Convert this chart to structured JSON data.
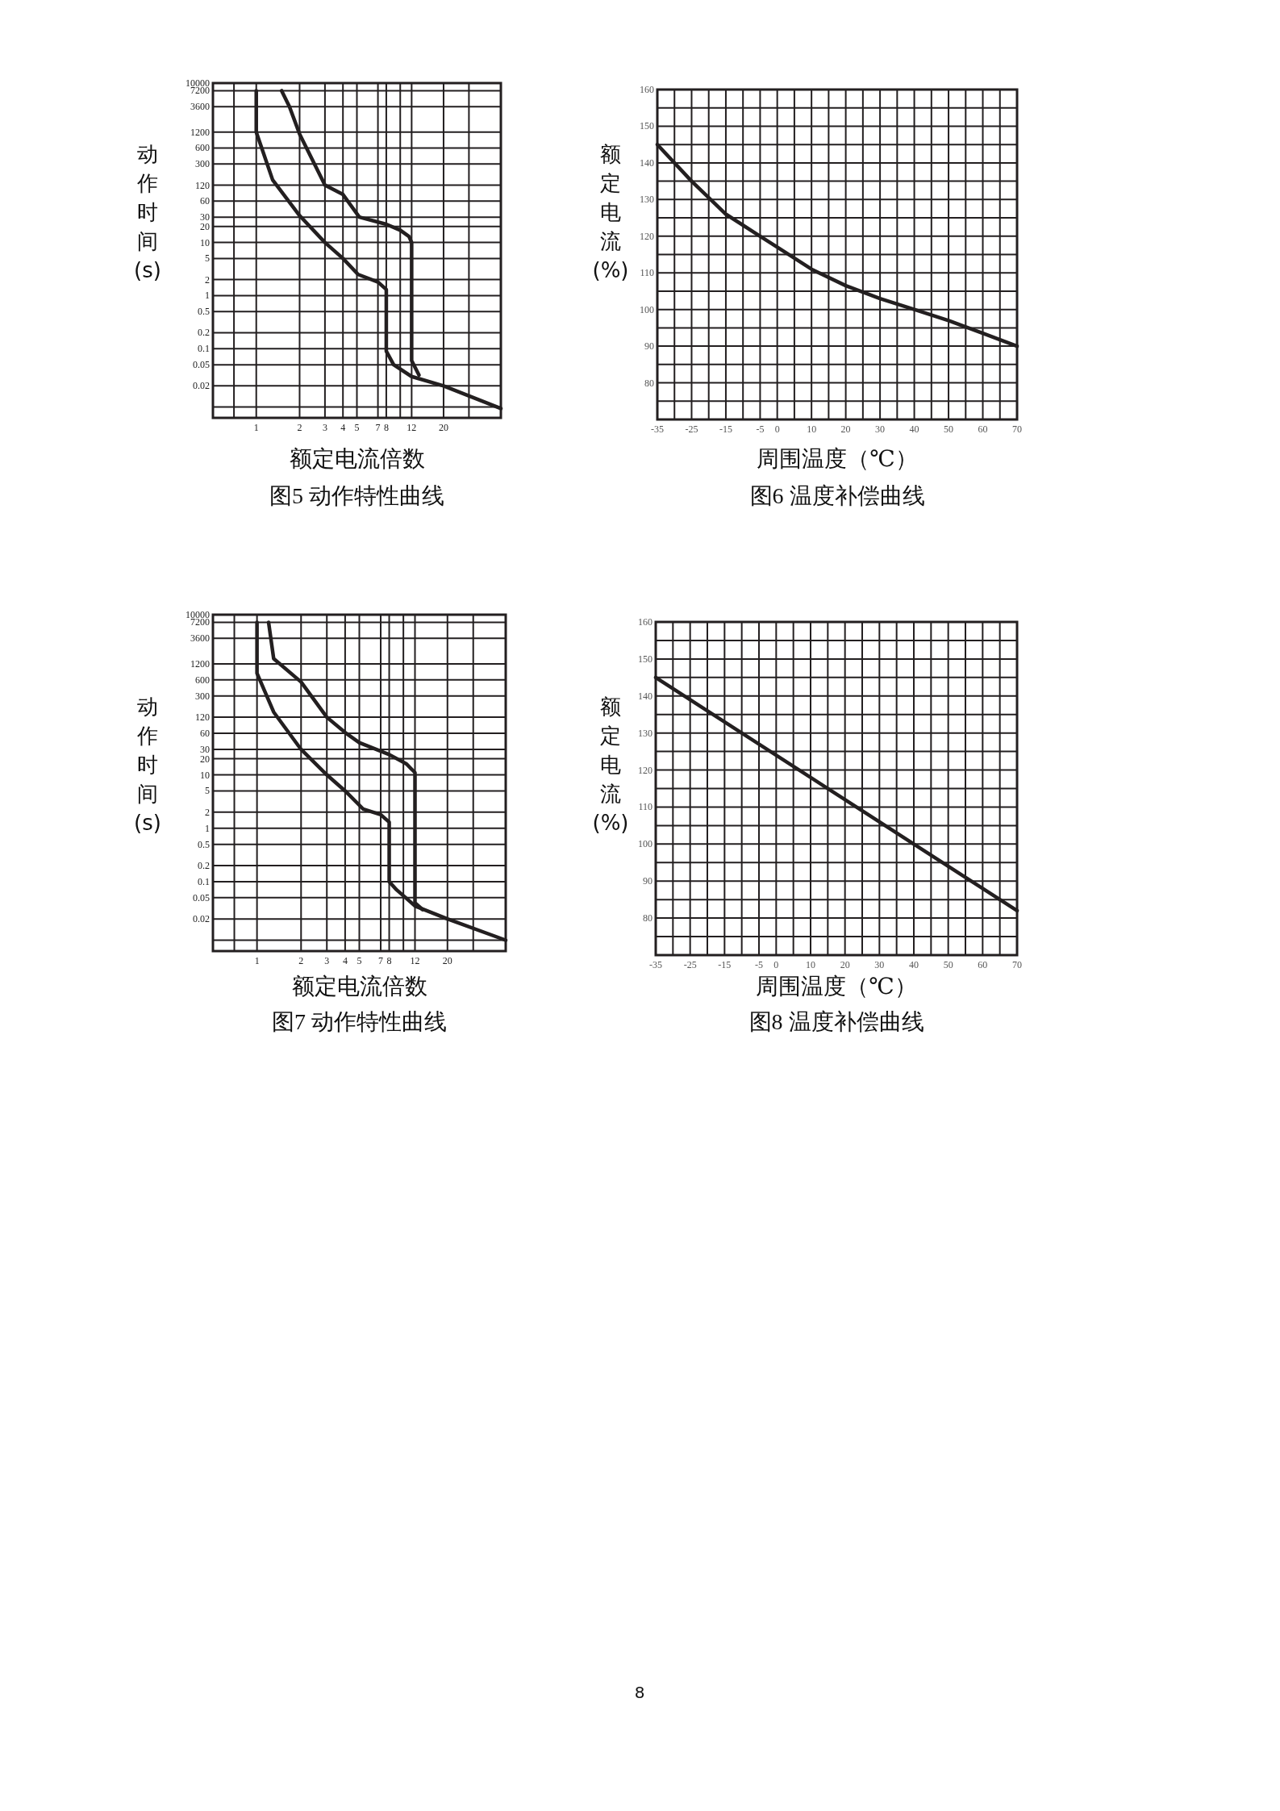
{
  "chart_data": [
    {
      "type": "line",
      "title": "图5 动作特性曲线",
      "xlabel": "额定电流倍数",
      "ylabel": "动作时间(s)",
      "log": "xy",
      "grid": true,
      "xlim": [
        0.5,
        50
      ],
      "ylim": [
        0.005,
        10000
      ],
      "xticks": [
        {
          "value": 0.7,
          "label": null
        },
        1,
        2,
        3,
        4,
        5,
        7,
        8,
        {
          "value": 10,
          "label": null
        },
        12,
        20,
        {
          "value": 30,
          "label": null
        }
      ],
      "yticks": [
        {
          "value": 0.008,
          "label": null
        },
        0.02,
        0.05,
        0.1,
        0.2,
        0.5,
        1,
        2,
        5,
        10,
        20,
        30,
        60,
        120,
        300,
        600,
        1200,
        3600,
        7200,
        10000
      ],
      "series": [
        {
          "color": "#231f20",
          "x": [
            1,
            1,
            1.3,
            2,
            3,
            4,
            5.1,
            7,
            8,
            8,
            9,
            12,
            20,
            50
          ],
          "values": [
            7200,
            1200,
            150,
            32,
            10,
            5,
            2.5,
            1.8,
            1.3,
            0.09,
            0.05,
            0.03,
            0.02,
            0.0075
          ]
        },
        {
          "color": "#231f20",
          "x": [
            1.5,
            1.7,
            2,
            3,
            4,
            5.2,
            8,
            10,
            11.5,
            12,
            12,
            13.5
          ],
          "values": [
            7200,
            3600,
            1100,
            120,
            80,
            30,
            22,
            17,
            13,
            10,
            0.06,
            0.032
          ]
        }
      ]
    },
    {
      "type": "line",
      "title": "图6 温度补偿曲线",
      "xlabel": "周围温度（℃）",
      "ylabel": "额定电流(%)",
      "grid": true,
      "xlim": [
        -35,
        70
      ],
      "ylim": [
        70,
        160
      ],
      "xticks": [
        -35,
        {
          "value": -30,
          "label": null
        },
        -25,
        {
          "value": -20,
          "label": null
        },
        -15,
        {
          "value": -10,
          "label": null
        },
        -5,
        0,
        {
          "value": 5,
          "label": null
        },
        10,
        {
          "value": 15,
          "label": null
        },
        20,
        {
          "value": 25,
          "label": null
        },
        30,
        {
          "value": 35,
          "label": null
        },
        40,
        {
          "value": 45,
          "label": null
        },
        50,
        {
          "value": 55,
          "label": null
        },
        60,
        {
          "value": 65,
          "label": null
        },
        70
      ],
      "yticks": [
        {
          "value": 75,
          "label": null
        },
        80,
        {
          "value": 85,
          "label": null
        },
        90,
        {
          "value": 95,
          "label": null
        },
        100,
        {
          "value": 105,
          "label": null
        },
        110,
        {
          "value": 115,
          "label": null
        },
        120,
        {
          "value": 125,
          "label": null
        },
        130,
        {
          "value": 135,
          "label": null
        },
        140,
        {
          "value": 145,
          "label": null
        },
        150,
        {
          "value": 155,
          "label": null
        },
        160
      ],
      "series": [
        {
          "color": "#231f20",
          "x": [
            -35,
            -25,
            -15,
            -5,
            0,
            10,
            20,
            30,
            40,
            50,
            60,
            70
          ],
          "values": [
            145,
            135,
            126,
            120,
            117,
            111,
            106.5,
            103,
            100,
            97,
            93.5,
            90
          ]
        }
      ]
    },
    {
      "type": "line",
      "title": "图7 动作特性曲线",
      "xlabel": "额定电流倍数",
      "ylabel": "动作时间(s)",
      "log": "xy",
      "grid": true,
      "xlim": [
        0.5,
        50
      ],
      "ylim": [
        0.005,
        10000
      ],
      "xticks": [
        {
          "value": 0.7,
          "label": null
        },
        1,
        2,
        3,
        4,
        5,
        7,
        8,
        {
          "value": 10,
          "label": null
        },
        12,
        20,
        {
          "value": 30,
          "label": null
        }
      ],
      "yticks": [
        {
          "value": 0.008,
          "label": null
        },
        0.02,
        0.05,
        0.1,
        0.2,
        0.5,
        1,
        2,
        5,
        10,
        20,
        30,
        60,
        120,
        300,
        600,
        1200,
        3600,
        7200,
        10000
      ],
      "series": [
        {
          "color": "#231f20",
          "x": [
            1,
            1,
            1.3,
            2,
            3,
            4,
            5.3,
            7,
            8,
            8,
            9,
            12,
            20,
            50
          ],
          "values": [
            7200,
            800,
            150,
            30,
            10,
            5,
            2.3,
            1.8,
            1.3,
            0.1,
            0.07,
            0.035,
            0.02,
            0.008
          ]
        },
        {
          "color": "#231f20",
          "x": [
            1.2,
            1.3,
            2,
            3,
            4,
            5,
            8,
            10.5,
            12,
            12,
            13.5
          ],
          "values": [
            7200,
            1500,
            550,
            120,
            62,
            40,
            24,
            16,
            11,
            0.04,
            0.03
          ]
        }
      ]
    },
    {
      "type": "line",
      "title": "图8 温度补偿曲线",
      "xlabel": "周围温度（℃）",
      "ylabel": "额定电流(%)",
      "grid": true,
      "xlim": [
        -35,
        70
      ],
      "ylim": [
        70,
        160
      ],
      "xticks": [
        -35,
        {
          "value": -30,
          "label": null
        },
        -25,
        {
          "value": -20,
          "label": null
        },
        -15,
        {
          "value": -10,
          "label": null
        },
        -5,
        0,
        {
          "value": 5,
          "label": null
        },
        10,
        {
          "value": 15,
          "label": null
        },
        20,
        {
          "value": 25,
          "label": null
        },
        30,
        {
          "value": 35,
          "label": null
        },
        40,
        {
          "value": 45,
          "label": null
        },
        50,
        {
          "value": 55,
          "label": null
        },
        60,
        {
          "value": 65,
          "label": null
        },
        70
      ],
      "yticks": [
        {
          "value": 75,
          "label": null
        },
        80,
        {
          "value": 85,
          "label": null
        },
        90,
        {
          "value": 95,
          "label": null
        },
        100,
        {
          "value": 105,
          "label": null
        },
        110,
        {
          "value": 115,
          "label": null
        },
        120,
        {
          "value": 125,
          "label": null
        },
        130,
        {
          "value": 135,
          "label": null
        },
        140,
        {
          "value": 145,
          "label": null
        },
        150,
        {
          "value": 155,
          "label": null
        },
        160
      ],
      "annotations": [
        "8"
      ],
      "series": [
        {
          "color": "#231f20",
          "x": [
            -35,
            40,
            70
          ],
          "values": [
            145,
            100,
            82
          ]
        }
      ]
    }
  ]
}
